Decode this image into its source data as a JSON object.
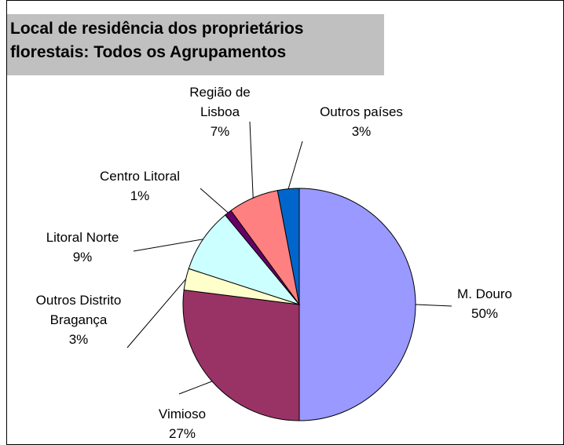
{
  "chart_data": {
    "type": "pie",
    "title": "Local de residência dos proprietários florestais: Todos os Agrupamentos",
    "categories": [
      "M. Douro",
      "Vimioso",
      "Outros Distrito Bragança",
      "Litoral Norte",
      "Centro Litoral",
      "Região de Lisboa",
      "Outros países"
    ],
    "values": [
      50,
      27,
      3,
      9,
      1,
      7,
      3
    ],
    "value_labels": [
      "50%",
      "27%",
      "3%",
      "9%",
      "1%",
      "7%",
      "3%"
    ],
    "colors": [
      "#9999ff",
      "#993366",
      "#ffffcc",
      "#ccffff",
      "#660066",
      "#ff8080",
      "#0066cc"
    ]
  }
}
